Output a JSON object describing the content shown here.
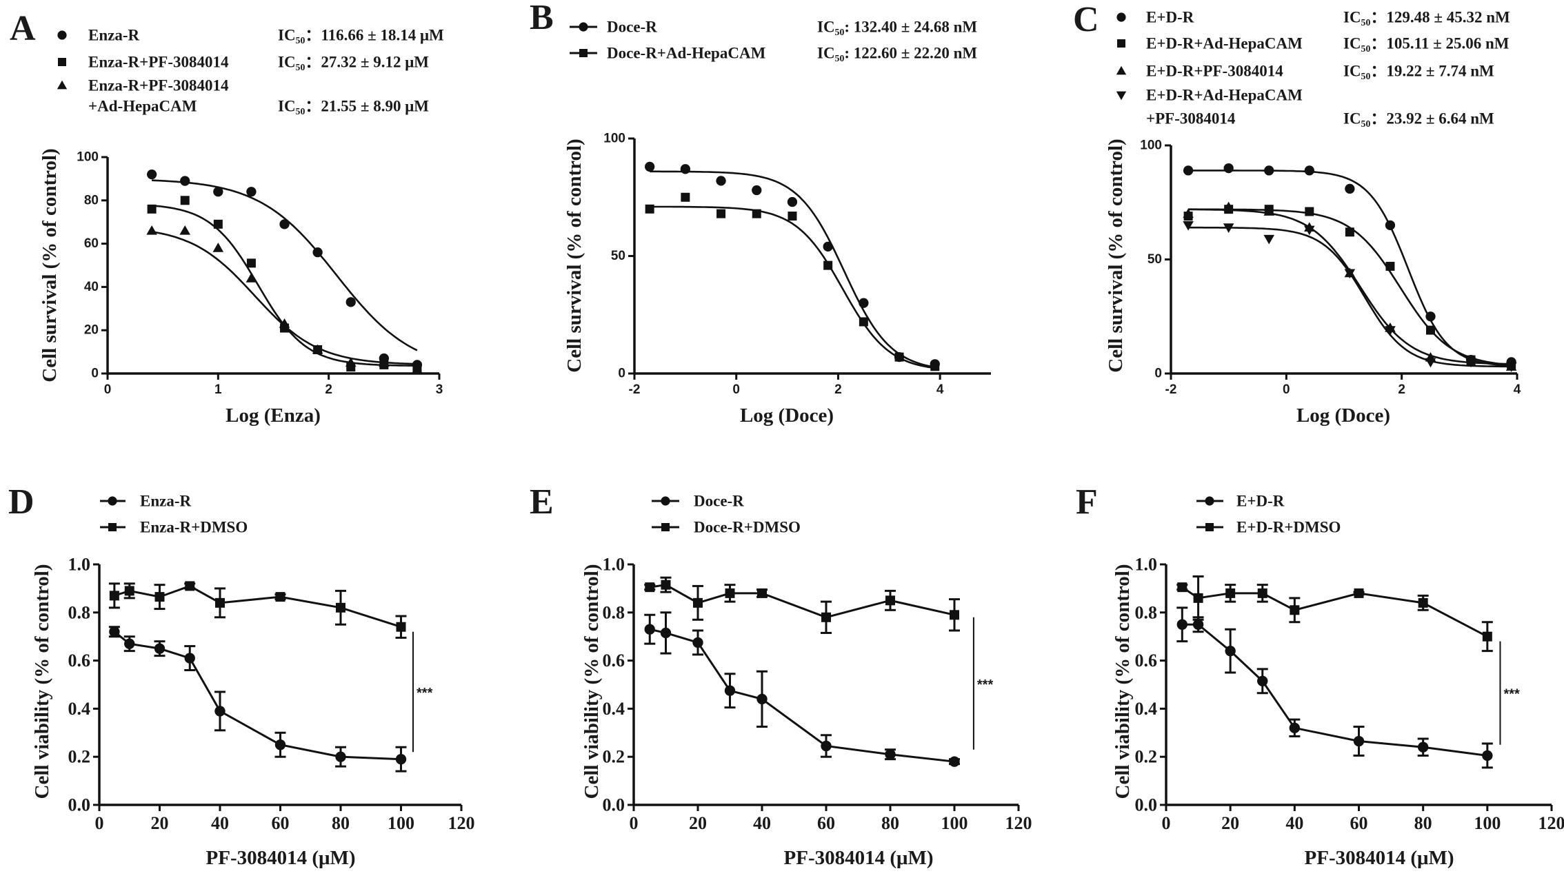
{
  "chart_data": [
    {
      "panel": "A",
      "type": "scatter",
      "xlabel": "Log (Enza)",
      "ylabel": "Cell survival (% of control)",
      "xlim": [
        0,
        3
      ],
      "ylim": [
        0,
        100
      ],
      "xticks": [
        0,
        1,
        2,
        3
      ],
      "yticks": [
        0,
        20,
        40,
        60,
        80,
        100
      ],
      "legend_style": "marker",
      "x": [
        0.4,
        0.7,
        1.0,
        1.3,
        1.6,
        1.9,
        2.2,
        2.5,
        2.8
      ],
      "series": [
        {
          "name": [
            "Enza-R"
          ],
          "marker": "circle",
          "ic50": "IC₅₀：116.66 ± 18.14 μM",
          "values": [
            92,
            89,
            84,
            84,
            69,
            56,
            33,
            7,
            4
          ],
          "fit": {
            "top": 90,
            "bottom": 1,
            "logIC50": 2.07,
            "hill": 1.25
          }
        },
        {
          "name": [
            "Enza-R+PF-3084014"
          ],
          "marker": "square",
          "ic50": "IC₅₀：27.32 ± 9.12 μM",
          "values": [
            76,
            80,
            69,
            51,
            21,
            11,
            3,
            4,
            3
          ],
          "fit": {
            "top": 78.5,
            "bottom": 3.5,
            "logIC50": 1.36,
            "hill": 2.0
          }
        },
        {
          "name": [
            "Enza-R+PF-3084014",
            "+Ad-HepaCAM"
          ],
          "marker": "triangle",
          "ic50": "IC₅₀：21.55 ± 8.90 μM",
          "values": [
            66,
            66,
            58,
            44,
            23,
            11,
            5,
            5,
            2
          ],
          "fit": {
            "top": 68,
            "bottom": 4,
            "logIC50": 1.33,
            "hill": 1.5
          }
        }
      ]
    },
    {
      "panel": "B",
      "type": "scatter",
      "xlabel": "Log (Doce)",
      "ylabel": "Cell survival (% of control)",
      "xlim": [
        -2,
        5
      ],
      "ylim": [
        0,
        100
      ],
      "xticks": [
        -2,
        0,
        2,
        4
      ],
      "yticks": [
        0,
        50,
        100
      ],
      "legend_style": "line-marker",
      "x": [
        -1.7,
        -1.0,
        -0.3,
        0.4,
        1.1,
        1.8,
        2.5,
        3.2,
        3.9
      ],
      "series": [
        {
          "name": [
            "Doce-R"
          ],
          "marker": "circle",
          "ic50": "IC₅₀: 132.40 ± 24.68 nM",
          "values": [
            88,
            87,
            82,
            78,
            73,
            54,
            30,
            7,
            4
          ],
          "fit": {
            "top": 86,
            "bottom": 1,
            "logIC50": 2.12,
            "hill": 0.95
          }
        },
        {
          "name": [
            "Doce-R+Ad-HepaCAM"
          ],
          "marker": "square",
          "ic50": "IC₅₀: 122.60 ± 22.20 nM",
          "values": [
            70,
            75,
            68,
            68,
            67,
            46,
            22,
            7,
            3
          ],
          "fit": {
            "top": 71,
            "bottom": 1,
            "logIC50": 2.09,
            "hill": 0.95
          }
        }
      ]
    },
    {
      "panel": "C",
      "type": "scatter",
      "xlabel": "Log (Doce)",
      "ylabel": "Cell survival (% of control)",
      "xlim": [
        -2,
        4
      ],
      "ylim": [
        0,
        100
      ],
      "xticks": [
        -2,
        0,
        2,
        4
      ],
      "yticks": [
        0,
        50,
        100
      ],
      "legend_style": "marker",
      "x": [
        -1.7,
        -1.0,
        -0.3,
        0.4,
        1.1,
        1.8,
        2.5,
        3.2,
        3.9
      ],
      "series": [
        {
          "name": [
            "E+D-R"
          ],
          "marker": "circle",
          "ic50": "IC₅₀：129.48 ± 45.32 nM",
          "values": [
            89,
            90,
            89,
            89,
            81,
            65,
            25,
            6,
            5
          ],
          "fit": {
            "top": 89,
            "bottom": 3,
            "logIC50": 2.11,
            "hill": 1.3
          }
        },
        {
          "name": [
            "E+D-R+Ad-HepaCAM"
          ],
          "marker": "square",
          "ic50": "IC₅₀：105.11 ± 25.06 nM",
          "values": [
            69,
            72,
            72,
            71,
            62,
            47,
            19,
            6,
            4
          ],
          "fit": {
            "top": 72,
            "bottom": 3,
            "logIC50": 1.98,
            "hill": 1.0
          }
        },
        {
          "name": [
            "E+D-R+PF-3084014"
          ],
          "marker": "triangle",
          "ic50": "IC₅₀：19.22 ± 7.74 nM",
          "values": [
            70,
            73,
            71,
            64,
            44,
            20,
            7,
            5,
            3
          ],
          "fit": {
            "top": 72,
            "bottom": 4,
            "logIC50": 1.28,
            "hill": 1.0
          }
        },
        {
          "name": [
            "E+D-R+Ad-HepaCAM",
            "+PF-3084014"
          ],
          "marker": "triangle-down",
          "ic50": "IC₅₀：23.92 ± 6.64 nM",
          "values": [
            65,
            64,
            59,
            63,
            44,
            19,
            5,
            5,
            3
          ],
          "fit": {
            "top": 64,
            "bottom": 3,
            "logIC50": 1.36,
            "hill": 1.2
          }
        }
      ]
    },
    {
      "panel": "D",
      "type": "line",
      "xlabel": "PF-3084014 (μM)",
      "ylabel": "Cell viability (% of control)",
      "xlim": [
        0,
        120
      ],
      "ylim": [
        0,
        1.0
      ],
      "xticks": [
        0,
        20,
        40,
        60,
        80,
        100,
        120
      ],
      "yticks": [
        0.0,
        0.2,
        0.4,
        0.6,
        0.8,
        1.0
      ],
      "legend_style": "line-marker",
      "x": [
        5,
        10,
        20,
        30,
        40,
        60,
        80,
        100
      ],
      "series": [
        {
          "name": [
            "Enza-R"
          ],
          "marker": "circle",
          "values": [
            0.72,
            0.67,
            0.65,
            0.61,
            0.39,
            0.25,
            0.2,
            0.19
          ],
          "errors": [
            0.02,
            0.03,
            0.03,
            0.05,
            0.08,
            0.05,
            0.04,
            0.05
          ]
        },
        {
          "name": [
            "Enza-R+DMSO"
          ],
          "marker": "square",
          "values": [
            0.87,
            0.89,
            0.865,
            0.91,
            0.84,
            0.865,
            0.82,
            0.74
          ],
          "errors": [
            0.05,
            0.03,
            0.05,
            0.01,
            0.06,
            0.01,
            0.07,
            0.045
          ]
        }
      ],
      "annotation": {
        "text": "***",
        "x": 104,
        "y_range": [
          0.22,
          0.72
        ]
      }
    },
    {
      "panel": "E",
      "type": "line",
      "xlabel": "PF-3084014 (μM)",
      "ylabel": "Cell viability (% of control)",
      "xlim": [
        0,
        120
      ],
      "ylim": [
        0,
        1.0
      ],
      "xticks": [
        0,
        20,
        40,
        60,
        80,
        100,
        120
      ],
      "yticks": [
        0.0,
        0.2,
        0.4,
        0.6,
        0.8,
        1.0
      ],
      "legend_style": "line-marker",
      "x": [
        5,
        10,
        20,
        30,
        40,
        60,
        80,
        100
      ],
      "series": [
        {
          "name": [
            "Doce-R"
          ],
          "marker": "circle",
          "values": [
            0.73,
            0.715,
            0.675,
            0.475,
            0.44,
            0.245,
            0.21,
            0.18
          ],
          "errors": [
            0.06,
            0.085,
            0.05,
            0.07,
            0.115,
            0.045,
            0.02,
            0.01
          ]
        },
        {
          "name": [
            "Doce-R+DMSO"
          ],
          "marker": "square",
          "values": [
            0.905,
            0.915,
            0.84,
            0.88,
            0.88,
            0.78,
            0.85,
            0.79
          ],
          "errors": [
            0.01,
            0.03,
            0.07,
            0.035,
            0.015,
            0.065,
            0.04,
            0.065
          ]
        }
      ],
      "annotation": {
        "text": "***",
        "x": 106,
        "y_range": [
          0.23,
          0.78
        ]
      }
    },
    {
      "panel": "F",
      "type": "line",
      "xlabel": "PF-3084014 (μM)",
      "ylabel": "Cell viability (% of control)",
      "xlim": [
        0,
        120
      ],
      "ylim": [
        0,
        1.0
      ],
      "xticks": [
        0,
        20,
        40,
        60,
        80,
        100,
        120
      ],
      "yticks": [
        0.0,
        0.2,
        0.4,
        0.6,
        0.8,
        1.0
      ],
      "legend_style": "line-marker",
      "x": [
        5,
        10,
        20,
        30,
        40,
        60,
        80,
        100
      ],
      "series": [
        {
          "name": [
            "E+D-R"
          ],
          "marker": "circle",
          "values": [
            0.75,
            0.75,
            0.64,
            0.515,
            0.32,
            0.265,
            0.24,
            0.205
          ],
          "errors": [
            0.07,
            0.03,
            0.09,
            0.05,
            0.035,
            0.06,
            0.035,
            0.05
          ]
        },
        {
          "name": [
            "E+D-R+DMSO"
          ],
          "marker": "square",
          "values": [
            0.905,
            0.86,
            0.88,
            0.88,
            0.81,
            0.88,
            0.84,
            0.7
          ],
          "errors": [
            0.01,
            0.09,
            0.035,
            0.035,
            0.05,
            0.005,
            0.03,
            0.06
          ]
        }
      ],
      "annotation": {
        "text": "***",
        "x": 104,
        "y_range": [
          0.25,
          0.68
        ]
      }
    }
  ]
}
